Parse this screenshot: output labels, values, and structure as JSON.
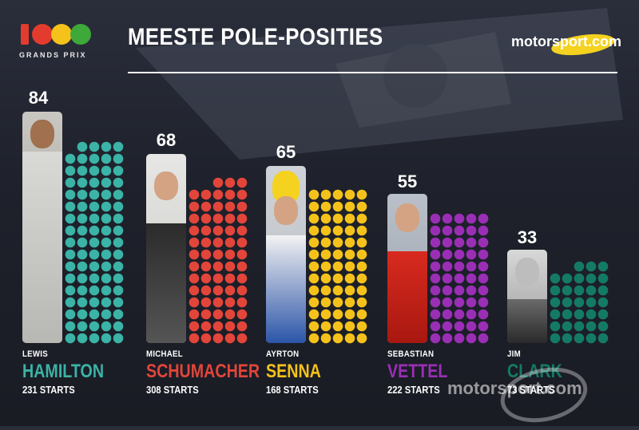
{
  "header": {
    "logo_text": "GRANDS PRIX",
    "title": "MEESTE POLE-POSITIES",
    "brand": "motorsport.com"
  },
  "colors": {
    "background": "#1f222c",
    "hamilton": "#3bb3a6",
    "schumacher": "#e2453a",
    "senna": "#f4c21a",
    "vettel": "#9a2fb6",
    "clark": "#147a66",
    "logo": [
      "#e43b2f",
      "#f4c21a",
      "#3fa83a"
    ]
  },
  "chart_data": {
    "type": "bar",
    "title": "MEESTE POLE-POSITIES",
    "categories": [
      "Lewis Hamilton",
      "Michael Schumacher",
      "Ayrton Senna",
      "Sebastian Vettel",
      "Jim Clark"
    ],
    "values": [
      84,
      68,
      65,
      55,
      33
    ],
    "unit_per_dot": 1,
    "legend": "none",
    "grid": false
  },
  "drivers": [
    {
      "count": "84",
      "first": "LEWIS",
      "last": "HAMILTON",
      "starts": "231 STARTS",
      "color": "#3bb3a6",
      "poles": 84,
      "icon": "driver-photo-icon"
    },
    {
      "count": "68",
      "first": "MICHAEL",
      "last": "SCHUMACHER",
      "starts": "308 STARTS",
      "color": "#e2453a",
      "poles": 68,
      "icon": "driver-photo-icon"
    },
    {
      "count": "65",
      "first": "AYRTON",
      "last": "SENNA",
      "starts": "168 STARTS",
      "color": "#f4c21a",
      "poles": 65,
      "icon": "driver-photo-icon"
    },
    {
      "count": "55",
      "first": "SEBASTIAN",
      "last": "VETTEL",
      "starts": "222 STARTS",
      "color": "#9a2fb6",
      "poles": 55,
      "icon": "driver-photo-icon"
    },
    {
      "count": "33",
      "first": "JIM",
      "last": "CLARK",
      "starts": "73 STARTS",
      "color": "#147a66",
      "poles": 33,
      "icon": "driver-photo-icon"
    }
  ],
  "watermark": "motorsport.com"
}
